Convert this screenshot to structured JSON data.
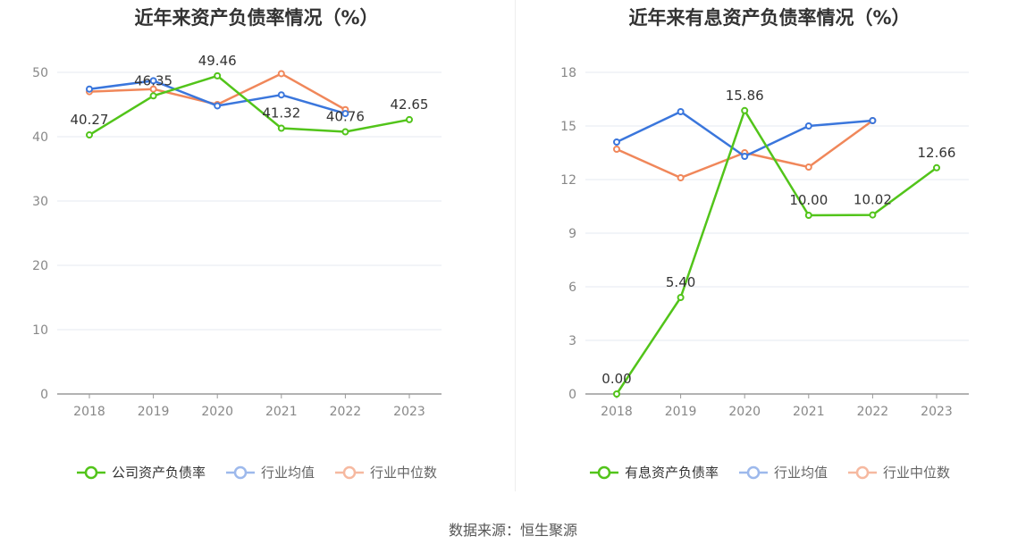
{
  "source_label": "数据来源：恒生聚源",
  "colors": {
    "company": "#52c41a",
    "industry_avg": "#3a76dc",
    "industry_median": "#f0875a"
  },
  "chart_data": [
    {
      "type": "line",
      "title": "近年来资产负债率情况（%）",
      "categories": [
        "2018",
        "2019",
        "2020",
        "2021",
        "2022",
        "2023"
      ],
      "ylim": [
        0,
        50
      ],
      "yticks": [
        "0",
        "10",
        "20",
        "30",
        "40",
        "50"
      ],
      "grid": true,
      "legend_placement": "bottom",
      "series": [
        {
          "name": "公司资产负债率",
          "values": [
            40.27,
            46.35,
            49.46,
            41.32,
            40.76,
            42.65
          ],
          "labels": [
            "40.27",
            "46.35",
            "49.46",
            "41.32",
            "40.76",
            "42.65"
          ]
        },
        {
          "name": "行业均值",
          "values": [
            47.4,
            48.7,
            44.8,
            46.5,
            43.6,
            null
          ]
        },
        {
          "name": "行业中位数",
          "values": [
            47.0,
            47.4,
            45.0,
            49.8,
            44.2,
            null
          ]
        }
      ]
    },
    {
      "type": "line",
      "title": "近年来有息资产负债率情况（%）",
      "categories": [
        "2018",
        "2019",
        "2020",
        "2021",
        "2022",
        "2023"
      ],
      "ylim": [
        0,
        18
      ],
      "yticks": [
        "0",
        "3",
        "6",
        "9",
        "12",
        "15",
        "18"
      ],
      "grid": true,
      "legend_placement": "bottom",
      "series": [
        {
          "name": "有息资产负债率",
          "values": [
            0.0,
            5.4,
            15.86,
            10.0,
            10.02,
            12.66
          ],
          "labels": [
            "0.00",
            "5.40",
            "15.86",
            "10.00",
            "10.02",
            "12.66"
          ]
        },
        {
          "name": "行业均值",
          "values": [
            14.1,
            15.8,
            13.3,
            15.0,
            15.3,
            null
          ]
        },
        {
          "name": "行业中位数",
          "values": [
            13.7,
            12.1,
            13.5,
            12.7,
            15.3,
            null
          ]
        }
      ]
    }
  ]
}
